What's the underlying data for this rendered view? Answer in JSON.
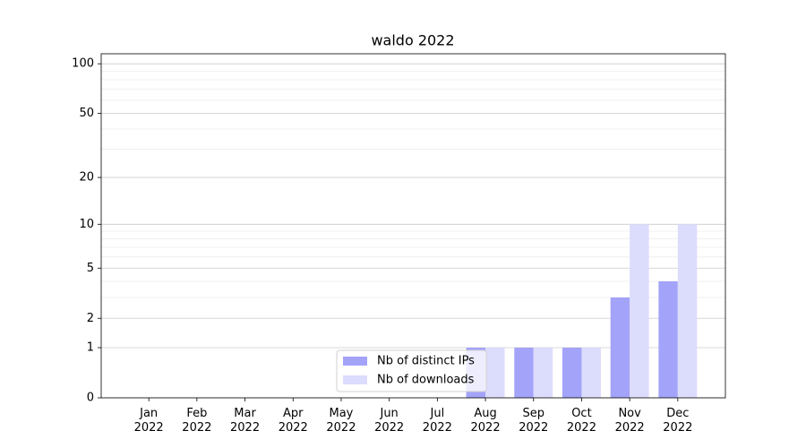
{
  "chart_data": {
    "type": "bar",
    "title": "waldo 2022",
    "categories": [
      "Jan\n2022",
      "Feb\n2022",
      "Mar\n2022",
      "Apr\n2022",
      "May\n2022",
      "Jun\n2022",
      "Jul\n2022",
      "Aug\n2022",
      "Sep\n2022",
      "Oct\n2022",
      "Nov\n2022",
      "Dec\n2022"
    ],
    "series": [
      {
        "name": "Nb of distinct IPs",
        "color": "#a3a3f9",
        "values": [
          0,
          0,
          0,
          0,
          0,
          0,
          0,
          1,
          1,
          1,
          3,
          4
        ]
      },
      {
        "name": "Nb of downloads",
        "color": "#dcdcfd",
        "values": [
          0,
          0,
          0,
          0,
          0,
          0,
          0,
          1,
          1,
          1,
          10,
          10
        ]
      }
    ],
    "yscale": "log1p",
    "ylim": [
      0,
      115
    ],
    "yticks": [
      0,
      1,
      2,
      5,
      10,
      20,
      50,
      100
    ],
    "minor_yticks": [
      3,
      4,
      6,
      7,
      8,
      9,
      30,
      40,
      60,
      70,
      80,
      90
    ],
    "grid": true,
    "legend": "lower center"
  }
}
